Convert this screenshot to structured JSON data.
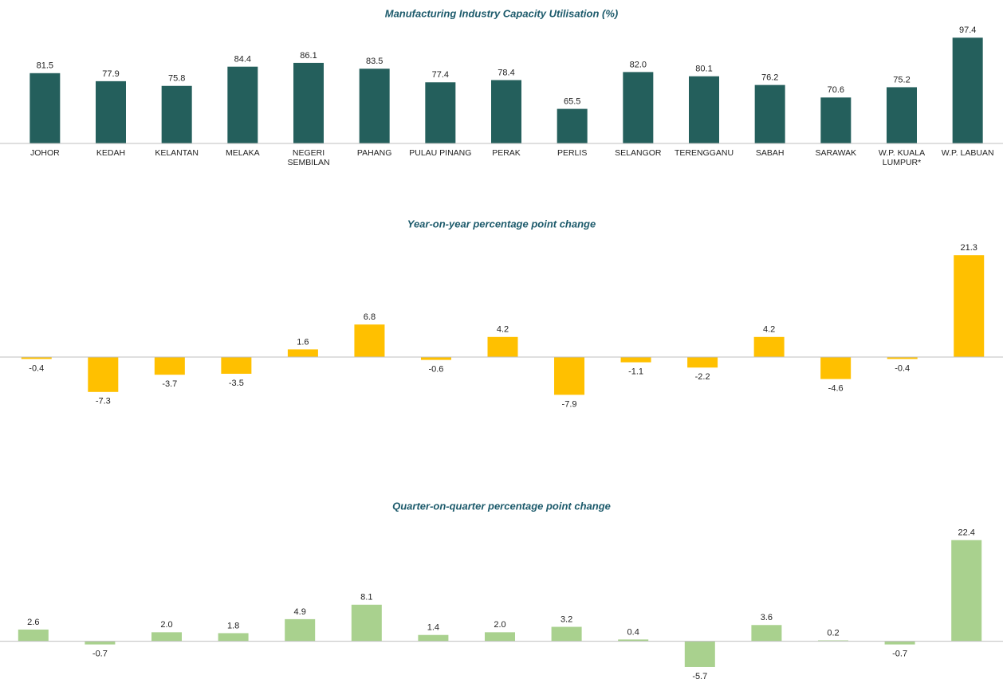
{
  "chart_data": [
    {
      "type": "bar",
      "title": "Manufacturing Industry Capacity Utilisation (%)",
      "categories": [
        "JOHOR",
        "KEDAH",
        "KELANTAN",
        "MELAKA",
        "NEGERI SEMBILAN",
        "PAHANG",
        "PULAU PINANG",
        "PERAK",
        "PERLIS",
        "SELANGOR",
        "TERENGGANU",
        "SABAH",
        "SARAWAK",
        "W.P. KUALA LUMPUR*",
        "W.P. LABUAN"
      ],
      "values": [
        81.5,
        77.9,
        75.8,
        84.4,
        86.1,
        83.5,
        77.4,
        78.4,
        65.5,
        82.0,
        80.1,
        76.2,
        70.6,
        75.2,
        97.4
      ],
      "value_labels": [
        "81.5",
        "77.9",
        "75.8",
        "84.4",
        "86.1",
        "83.5",
        "77.4",
        "78.4",
        "65.5",
        "82.0",
        "80.1",
        "76.2",
        "70.6",
        "75.2",
        "97.4"
      ],
      "color": "#245f5c",
      "ylim": [
        50,
        100
      ]
    },
    {
      "type": "bar",
      "title": "Year-on-year percentage point change",
      "values": [
        -0.4,
        -7.3,
        -3.7,
        -3.5,
        1.6,
        6.8,
        -0.6,
        4.2,
        -7.9,
        -1.1,
        -2.2,
        4.2,
        -4.6,
        -0.4,
        21.3
      ],
      "value_labels": [
        "-0.4",
        "-7.3",
        "-3.7",
        "-3.5",
        "1.6",
        "6.8",
        "-0.6",
        "4.2",
        "-7.9",
        "-1.1",
        "-2.2",
        "4.2",
        "-4.6",
        "-0.4",
        "21.3"
      ],
      "color": "#ffc000",
      "ylim": [
        -10,
        25
      ]
    },
    {
      "type": "bar",
      "title": "Quarter-on-quarter percentage point change",
      "values": [
        2.6,
        -0.7,
        2.0,
        1.8,
        4.9,
        8.1,
        1.4,
        2.0,
        3.2,
        0.4,
        -5.7,
        3.6,
        0.2,
        -0.7,
        22.4
      ],
      "value_labels": [
        "2.6",
        "-0.7",
        "2.0",
        "1.8",
        "4.9",
        "8.1",
        "1.4",
        "2.0",
        "3.2",
        "0.4",
        "-5.7",
        "3.6",
        "0.2",
        "-0.7",
        "22.4"
      ],
      "color": "#a9d18e",
      "ylim": [
        -8,
        25
      ]
    }
  ]
}
